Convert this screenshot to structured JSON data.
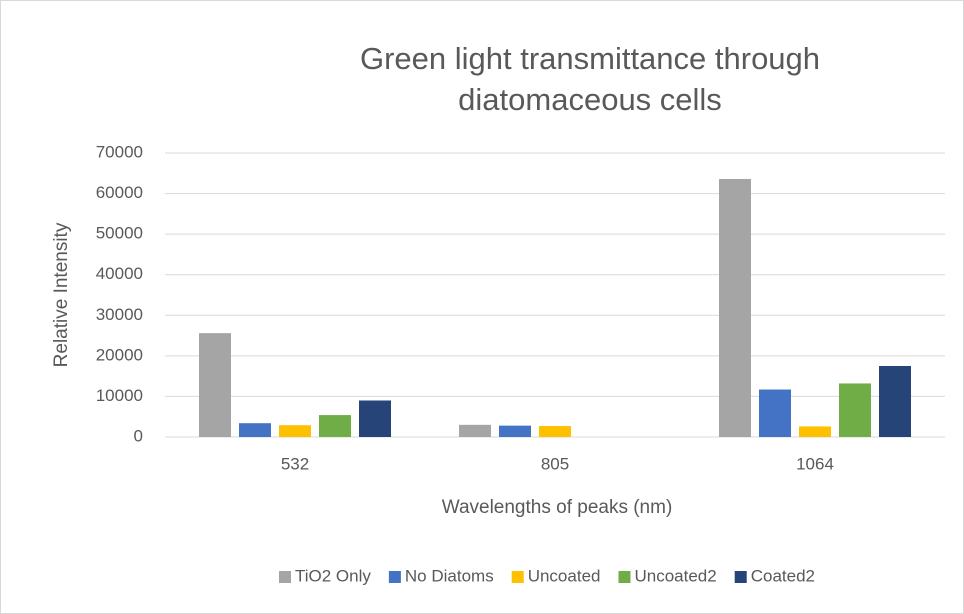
{
  "chart_data": {
    "type": "bar",
    "title": "Green light transmittance through diatomaceous cells",
    "x_label": "Wavelengths of peaks (nm)",
    "y_label": "Relative Intensity",
    "categories": [
      "532",
      "805",
      "1064"
    ],
    "series": [
      {
        "name": "TiO2 Only",
        "color": "#a5a5a5",
        "values": [
          25600,
          3000,
          63600
        ]
      },
      {
        "name": "No Diatoms",
        "color": "#4472c4",
        "values": [
          3400,
          2800,
          11700
        ]
      },
      {
        "name": "Uncoated",
        "color": "#ffc000",
        "values": [
          2900,
          2700,
          2600
        ]
      },
      {
        "name": "Uncoated2",
        "color": "#70ad47",
        "values": [
          5400,
          null,
          13200
        ]
      },
      {
        "name": "Coated2",
        "color": "#264478",
        "values": [
          9000,
          null,
          17500
        ]
      }
    ],
    "ylim": [
      0,
      70000
    ],
    "yticks": [
      0,
      10000,
      20000,
      30000,
      40000,
      50000,
      60000,
      70000
    ],
    "grid": true,
    "legend": "bottom"
  }
}
